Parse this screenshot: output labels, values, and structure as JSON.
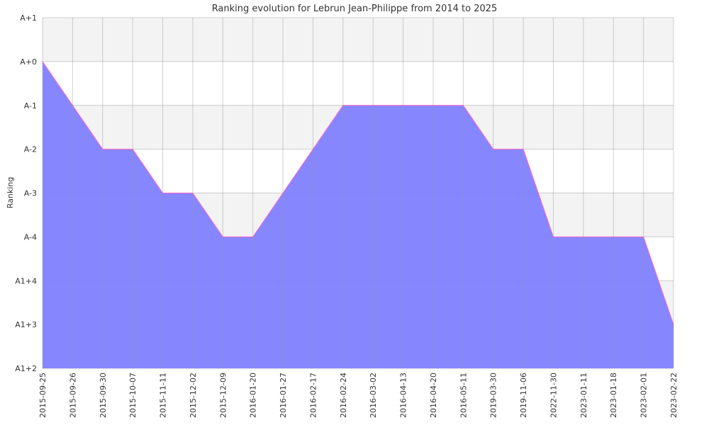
{
  "chart_data": {
    "type": "area",
    "title": "Ranking evolution for Lebrun Jean-Philippe from 2014 to 2025",
    "xlabel": "",
    "ylabel": "Ranking",
    "y_levels": [
      "A1+2",
      "A1+3",
      "A1+4",
      "A-4",
      "A-3",
      "A-2",
      "A-1",
      "A+0",
      "A+1"
    ],
    "ylim": [
      "A1+2",
      "A+1"
    ],
    "categories": [
      "2015-09-25",
      "2015-09-26",
      "2015-09-30",
      "2015-10-07",
      "2015-11-11",
      "2015-12-02",
      "2015-12-09",
      "2016-01-20",
      "2016-01-27",
      "2016-02-17",
      "2016-02-24",
      "2016-03-02",
      "2016-04-13",
      "2016-04-20",
      "2016-05-11",
      "2019-03-30",
      "2019-11-06",
      "2022-11-30",
      "2023-01-11",
      "2023-01-18",
      "2023-02-01",
      "2023-02-22"
    ],
    "series": [
      {
        "values": [
          "A+0",
          "A-1",
          "A-2",
          "A-2",
          "A-3",
          "A-3",
          "A-4",
          "A-4",
          "A-3",
          "A-2",
          "A-1",
          "A-1",
          "A-1",
          "A-1",
          "A-1",
          "A-2",
          "A-2",
          "A-4",
          "A-4",
          "A-4",
          "A-4",
          "A1+3"
        ]
      }
    ],
    "grid": true,
    "colors": {
      "fill": "#7f7fff",
      "line": "#ff66cc",
      "band": "#f3f3f3",
      "grid": "#cccccc"
    }
  }
}
